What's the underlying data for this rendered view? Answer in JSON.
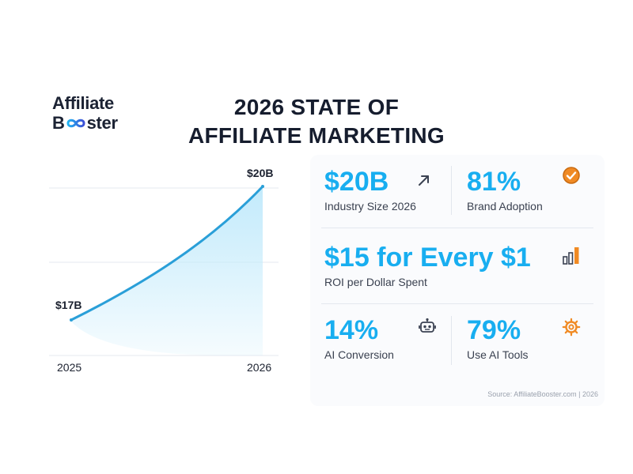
{
  "logo": {
    "line1": "Affiliate",
    "line2_start": "B",
    "line2_end": "ster"
  },
  "title": {
    "line1": "2026 STATE OF",
    "line2": "AFFILIATE MARKETING"
  },
  "chart_data": {
    "type": "area",
    "x": [
      "2025",
      "2026"
    ],
    "values": [
      17,
      20
    ],
    "point_labels": [
      "$17B",
      "$20B"
    ],
    "tick_labels": [
      "2025",
      "2026"
    ],
    "title": "",
    "xlabel": "",
    "ylabel": "",
    "grid": true,
    "line_color": "#2a9fd8",
    "fill_color": "#bfe9fb"
  },
  "stats": {
    "industry": {
      "value": "$20B",
      "label": "Industry Size 2026",
      "icon": "arrow-up-right-icon"
    },
    "brand": {
      "value": "81%",
      "label": "Brand Adoption",
      "icon": "check-circle-icon"
    },
    "roi": {
      "value": "$15 for Every $1",
      "label": "ROI per Dollar Spent",
      "icon": "bar-chart-icon"
    },
    "ai_conversion": {
      "value": "14%",
      "label": "AI Conversion",
      "icon": "robot-icon"
    },
    "ai_tools": {
      "value": "79%",
      "label": "Use AI Tools",
      "icon": "gear-icon"
    }
  },
  "colors": {
    "accent": "#18aef0",
    "orange": "#f08a24",
    "text": "#1c2230"
  },
  "source": "Source: AffiliateBooster.com | 2026"
}
